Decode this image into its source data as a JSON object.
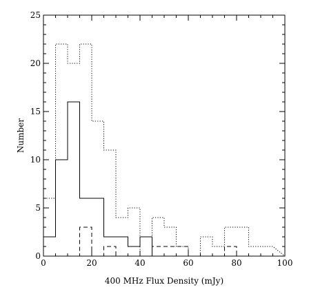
{
  "chart_data": {
    "type": "histogram",
    "title": "",
    "xlabel": "400 MHz Flux Density (mJy)",
    "ylabel": "Number",
    "xlim": [
      0,
      100
    ],
    "ylim": [
      0,
      25
    ],
    "x_major_ticks": [
      0,
      20,
      40,
      60,
      80,
      100
    ],
    "y_major_ticks": [
      0,
      5,
      10,
      15,
      20,
      25
    ],
    "x_minor_step": 5,
    "y_minor_step": 1,
    "grid": false,
    "legend": "none",
    "bin_edges": [
      0,
      5,
      10,
      15,
      20,
      25,
      30,
      35,
      40,
      45,
      50,
      55,
      60,
      65,
      70,
      75,
      80,
      85,
      90,
      95
    ],
    "series": [
      {
        "line_style": "dotted",
        "counts": [
          6,
          22,
          20,
          22,
          14,
          11,
          4,
          5,
          0,
          4,
          3,
          1,
          0,
          2,
          1,
          3,
          3,
          1,
          1
        ]
      },
      {
        "line_style": "solid",
        "counts": [
          2,
          10,
          16,
          6,
          6,
          2,
          2,
          1,
          2,
          0,
          0,
          0,
          0,
          0,
          0,
          0,
          0,
          0,
          0
        ]
      },
      {
        "line_style": "dashed",
        "counts": [
          0,
          0,
          0,
          3,
          0,
          1,
          0,
          0,
          0,
          1,
          1,
          1,
          0,
          0,
          0,
          1,
          0,
          0,
          0
        ]
      }
    ]
  }
}
